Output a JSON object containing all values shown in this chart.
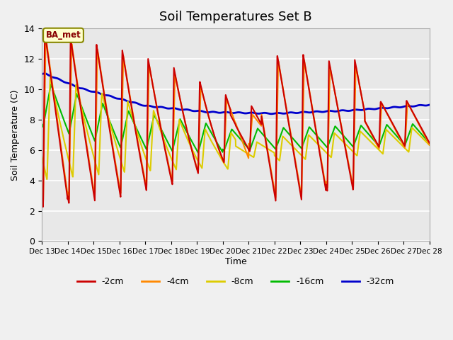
{
  "title": "Soil Temperatures Set B",
  "xlabel": "Time",
  "ylabel": "Soil Temperature (C)",
  "ylim": [
    0,
    14
  ],
  "xlim_days": [
    13,
    28
  ],
  "annotation": "BA_met",
  "plot_bg_color": "#e8e8e8",
  "series": {
    "-2cm": {
      "color": "#cc0000",
      "lw": 1.5
    },
    "-4cm": {
      "color": "#ff8800",
      "lw": 1.5
    },
    "-8cm": {
      "color": "#ddcc00",
      "lw": 1.5
    },
    "-16cm": {
      "color": "#00bb00",
      "lw": 1.5
    },
    "-32cm": {
      "color": "#0000cc",
      "lw": 2.0
    }
  },
  "xtick_labels": [
    "Dec 13",
    "Dec 14",
    "Dec 15",
    "Dec 16",
    "Dec 17",
    "Dec 18",
    "Dec 19",
    "Dec 20",
    "Dec 21",
    "Dec 22",
    "Dec 23",
    "Dec 24",
    "Dec 25",
    "Dec 26",
    "Dec 27",
    "Dec 28"
  ],
  "xtick_positions": [
    13,
    14,
    15,
    16,
    17,
    18,
    19,
    20,
    21,
    22,
    23,
    24,
    25,
    26,
    27,
    28
  ],
  "ytick_positions": [
    0,
    2,
    4,
    6,
    8,
    10,
    12,
    14
  ],
  "legend_items": [
    "-2cm",
    "-4cm",
    "-8cm",
    "-16cm",
    "-32cm"
  ],
  "legend_colors": [
    "#cc0000",
    "#ff8800",
    "#ddcc00",
    "#00bb00",
    "#0000cc"
  ]
}
